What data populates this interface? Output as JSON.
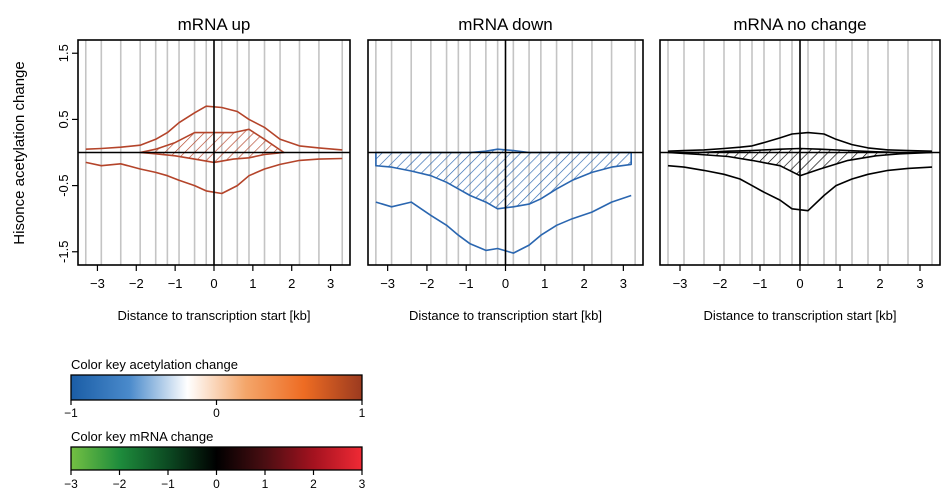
{
  "ylabel": "Hisonce acetylation change",
  "y_ticks": [
    "-1.5",
    "-0.5",
    "0.5",
    "1.5"
  ],
  "x_ticks": [
    "−3",
    "−2",
    "−1",
    "0",
    "1",
    "2",
    "3"
  ],
  "xlabel": "Distance to transcription start [kb]",
  "chart_data": [
    {
      "type": "line",
      "title": "mRNA up",
      "xlabel": "Distance to transcription start [kb]",
      "ylabel": "Hisonce acetylation change",
      "xlim": [
        -3.5,
        3.5
      ],
      "ylim": [
        -1.7,
        1.7
      ],
      "color": "#b4442a",
      "x": [
        -3.3,
        -2.9,
        -2.4,
        -1.9,
        -1.5,
        -1.2,
        -0.9,
        -0.5,
        -0.2,
        0.2,
        0.6,
        0.9,
        1.3,
        1.7,
        2.2,
        2.7,
        3.3
      ],
      "series": [
        {
          "values": [
            0.05,
            0.06,
            0.08,
            0.11,
            0.2,
            0.3,
            0.45,
            0.6,
            0.7,
            0.68,
            0.62,
            0.5,
            0.38,
            0.2,
            0.1,
            0.07,
            0.04
          ]
        },
        {
          "values": [
            -0.15,
            -0.2,
            -0.17,
            -0.25,
            -0.3,
            -0.35,
            -0.42,
            -0.5,
            -0.58,
            -0.62,
            -0.5,
            -0.35,
            -0.25,
            -0.18,
            -0.12,
            -0.1,
            -0.09
          ]
        }
      ],
      "hatched_band": {
        "x": [
          -1.9,
          -1.5,
          -1.0,
          -0.5,
          0.0,
          0.5,
          0.9,
          1.3,
          1.8
        ],
        "upper": [
          0.0,
          0.05,
          0.15,
          0.3,
          0.3,
          0.3,
          0.35,
          0.2,
          0.0
        ],
        "lower": [
          0.0,
          -0.02,
          -0.05,
          -0.1,
          -0.15,
          -0.1,
          -0.08,
          -0.03,
          0.0
        ]
      }
    },
    {
      "type": "line",
      "title": "mRNA down",
      "xlabel": "Distance to transcription start [kb]",
      "ylabel": "Hisonce acetylation change",
      "xlim": [
        -3.5,
        3.5
      ],
      "ylim": [
        -1.7,
        1.7
      ],
      "color": "#2a66b0",
      "x": [
        -3.3,
        -2.9,
        -2.4,
        -1.9,
        -1.5,
        -1.2,
        -0.9,
        -0.5,
        -0.2,
        0.2,
        0.6,
        0.9,
        1.3,
        1.7,
        2.2,
        2.7,
        3.2
      ],
      "series": [
        {
          "values": [
            -0.75,
            -0.82,
            -0.75,
            -0.95,
            -1.1,
            -1.25,
            -1.38,
            -1.48,
            -1.45,
            -1.52,
            -1.4,
            -1.25,
            -1.1,
            -1.0,
            -0.9,
            -0.75,
            -0.65
          ]
        }
      ],
      "hatched_band": {
        "x": [
          -3.3,
          -2.9,
          -2.4,
          -1.9,
          -1.5,
          -1.2,
          -0.9,
          -0.5,
          -0.2,
          0.2,
          0.6,
          0.9,
          1.3,
          1.7,
          2.2,
          2.7,
          3.2
        ],
        "upper": [
          0.0,
          0.0,
          0.0,
          0.0,
          0.0,
          0.0,
          0.0,
          0.02,
          0.05,
          0.03,
          0.0,
          0.0,
          0.0,
          0.0,
          0.0,
          0.0,
          0.0
        ],
        "lower": [
          -0.2,
          -0.22,
          -0.28,
          -0.35,
          -0.45,
          -0.55,
          -0.65,
          -0.75,
          -0.85,
          -0.82,
          -0.78,
          -0.7,
          -0.55,
          -0.42,
          -0.3,
          -0.22,
          -0.18
        ]
      }
    },
    {
      "type": "line",
      "title": "mRNA no change",
      "xlabel": "Distance to transcription start [kb]",
      "ylabel": "Hisonce acetylation change",
      "xlim": [
        -3.5,
        3.5
      ],
      "ylim": [
        -1.7,
        1.7
      ],
      "color": "#000000",
      "x": [
        -3.3,
        -2.9,
        -2.4,
        -1.9,
        -1.5,
        -1.2,
        -0.9,
        -0.5,
        -0.2,
        0.2,
        0.6,
        0.9,
        1.3,
        1.7,
        2.2,
        2.7,
        3.3
      ],
      "series": [
        {
          "values": [
            0.02,
            0.03,
            0.04,
            0.06,
            0.08,
            0.1,
            0.15,
            0.22,
            0.28,
            0.3,
            0.28,
            0.2,
            0.12,
            0.07,
            0.04,
            0.03,
            0.02
          ]
        },
        {
          "values": [
            -0.2,
            -0.22,
            -0.27,
            -0.33,
            -0.4,
            -0.5,
            -0.6,
            -0.72,
            -0.85,
            -0.88,
            -0.65,
            -0.5,
            -0.4,
            -0.33,
            -0.27,
            -0.24,
            -0.22
          ]
        }
      ],
      "hatched_band": {
        "x": [
          -3.3,
          -2.5,
          -1.8,
          -1.2,
          -0.5,
          0.0,
          0.5,
          1.2,
          1.9,
          2.5,
          3.3
        ],
        "upper": [
          0.0,
          0.0,
          0.02,
          0.03,
          0.05,
          0.06,
          0.05,
          0.03,
          0.01,
          0.0,
          0.0
        ],
        "lower": [
          0.0,
          -0.03,
          -0.06,
          -0.12,
          -0.2,
          -0.35,
          -0.25,
          -0.12,
          -0.05,
          -0.02,
          0.0
        ]
      }
    }
  ],
  "color_keys": [
    {
      "title": "Color key acetylation change",
      "ticks": [
        "−1",
        "0",
        "1"
      ],
      "tick_values": [
        -1,
        0,
        1
      ],
      "range": [
        -1,
        1
      ],
      "gradient": [
        "#1a5da6",
        "#4a8acb",
        "#ffffff",
        "#f4a66a",
        "#ee6c23",
        "#9b3a1f"
      ]
    },
    {
      "title": "Color key mRNA change",
      "ticks": [
        "−3",
        "−2",
        "−1",
        "0",
        "1",
        "2",
        "3"
      ],
      "tick_values": [
        -3,
        -2,
        -1,
        0,
        1,
        2,
        3
      ],
      "range": [
        -3,
        3
      ],
      "gradient": [
        "#74c043",
        "#1e8c3c",
        "#0c4a22",
        "#000000",
        "#4a0e12",
        "#a3121f",
        "#f02a35"
      ]
    }
  ]
}
